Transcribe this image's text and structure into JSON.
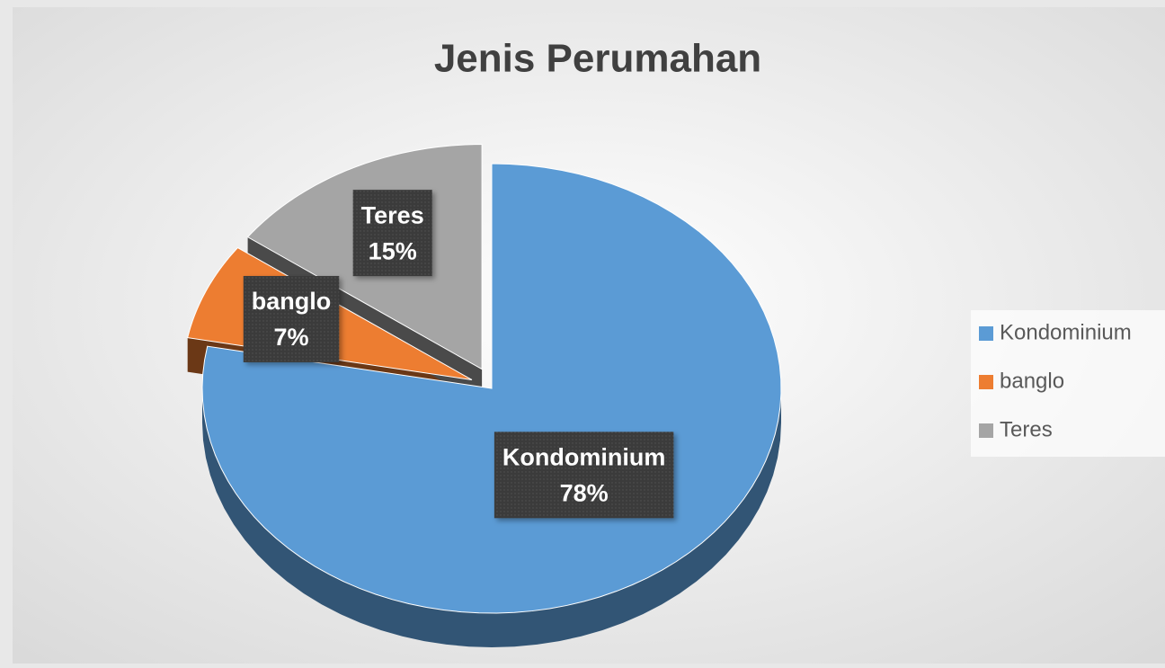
{
  "chart_data": {
    "type": "pie",
    "title": "Jenis Perumahan",
    "categories": [
      "Kondominium",
      "banglo",
      "Teres"
    ],
    "values": [
      78,
      7,
      15
    ],
    "value_labels": [
      "78%",
      "7%",
      "15%"
    ],
    "colors": [
      "#5b9bd5",
      "#ed7d31",
      "#a5a5a5"
    ],
    "legend": "right"
  }
}
